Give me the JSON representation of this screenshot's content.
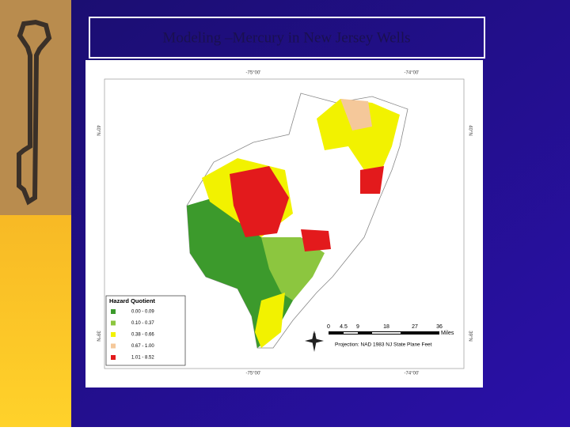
{
  "slide": {
    "title": "Modeling –Mercury in New Jersey Wells",
    "map": {
      "top_labels": [
        "-75°00'",
        "-74°00'"
      ],
      "bottom_labels": [
        "-75°00'",
        "-74°00'"
      ],
      "left_labels": [
        "40°N",
        "39°N"
      ],
      "right_labels": [
        "40°N",
        "39°N"
      ],
      "legend": {
        "title": "Hazard Quotient",
        "entries": [
          {
            "label": "0.00 - 0.09",
            "color": "#3c9a2c"
          },
          {
            "label": "0.10 - 0.37",
            "color": "#8cc63f"
          },
          {
            "label": "0.38 - 0.66",
            "color": "#f2f200"
          },
          {
            "label": "0.67 - 1.00",
            "color": "#f5c89a"
          },
          {
            "label": "1.01 - 8.52",
            "color": "#e31a1c"
          }
        ]
      },
      "scale_labels": [
        "0",
        "4.5",
        "9",
        "18",
        "27",
        "36"
      ],
      "scale_unit": "Miles",
      "north": "N",
      "projection": "Projection: NAD 1983 NJ State Plane Feet"
    }
  }
}
